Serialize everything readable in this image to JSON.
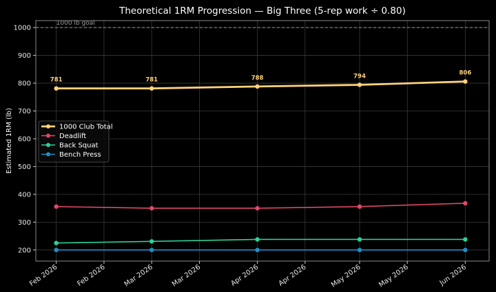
{
  "chart_data": {
    "type": "line",
    "title": "Theoretical 1RM Progression — Big Three (5-rep work ÷ 0.80)",
    "xlabel": "",
    "ylabel": "Estimated 1RM (lb)",
    "ylim": [
      160,
      1025
    ],
    "grid": true,
    "legend_position": "center-left",
    "x": [
      "2026-02-01",
      "2026-03-01",
      "2026-04-01",
      "2026-05-01",
      "2026-06-01"
    ],
    "x_range": [
      "2026-01-26",
      "2026-06-08"
    ],
    "x_ticks": [
      {
        "date": "2026-02-01",
        "label": "Feb 2026"
      },
      {
        "date": "2026-02-15",
        "label": "Feb 2026"
      },
      {
        "date": "2026-03-01",
        "label": "Mar 2026"
      },
      {
        "date": "2026-03-15",
        "label": "Mar 2026"
      },
      {
        "date": "2026-04-01",
        "label": "Apr 2026"
      },
      {
        "date": "2026-04-15",
        "label": "Apr 2026"
      },
      {
        "date": "2026-05-01",
        "label": "May 2026"
      },
      {
        "date": "2026-05-15",
        "label": "May 2026"
      },
      {
        "date": "2026-06-01",
        "label": "Jun 2026"
      }
    ],
    "y_ticks": [
      200,
      300,
      400,
      500,
      600,
      700,
      800,
      900,
      1000
    ],
    "goal_line": {
      "value": 1000,
      "label": "1000 lb goal",
      "color": "#9a9a9a"
    },
    "series": [
      {
        "name": "1000 Club Total",
        "color": "#ffd27a",
        "line_width": 2.8,
        "show_labels": true,
        "values": [
          781,
          781,
          788,
          794,
          806
        ]
      },
      {
        "name": "Deadlift",
        "color": "#e0476a",
        "line_width": 1.6,
        "show_labels": false,
        "values": [
          356,
          350,
          350,
          356,
          368
        ]
      },
      {
        "name": "Back Squat",
        "color": "#2ed19a",
        "line_width": 1.6,
        "show_labels": false,
        "values": [
          225,
          231,
          238,
          238,
          238
        ]
      },
      {
        "name": "Bench Press",
        "color": "#1f8fc4",
        "line_width": 1.6,
        "show_labels": false,
        "values": [
          200,
          200,
          200,
          200,
          200
        ]
      }
    ]
  }
}
